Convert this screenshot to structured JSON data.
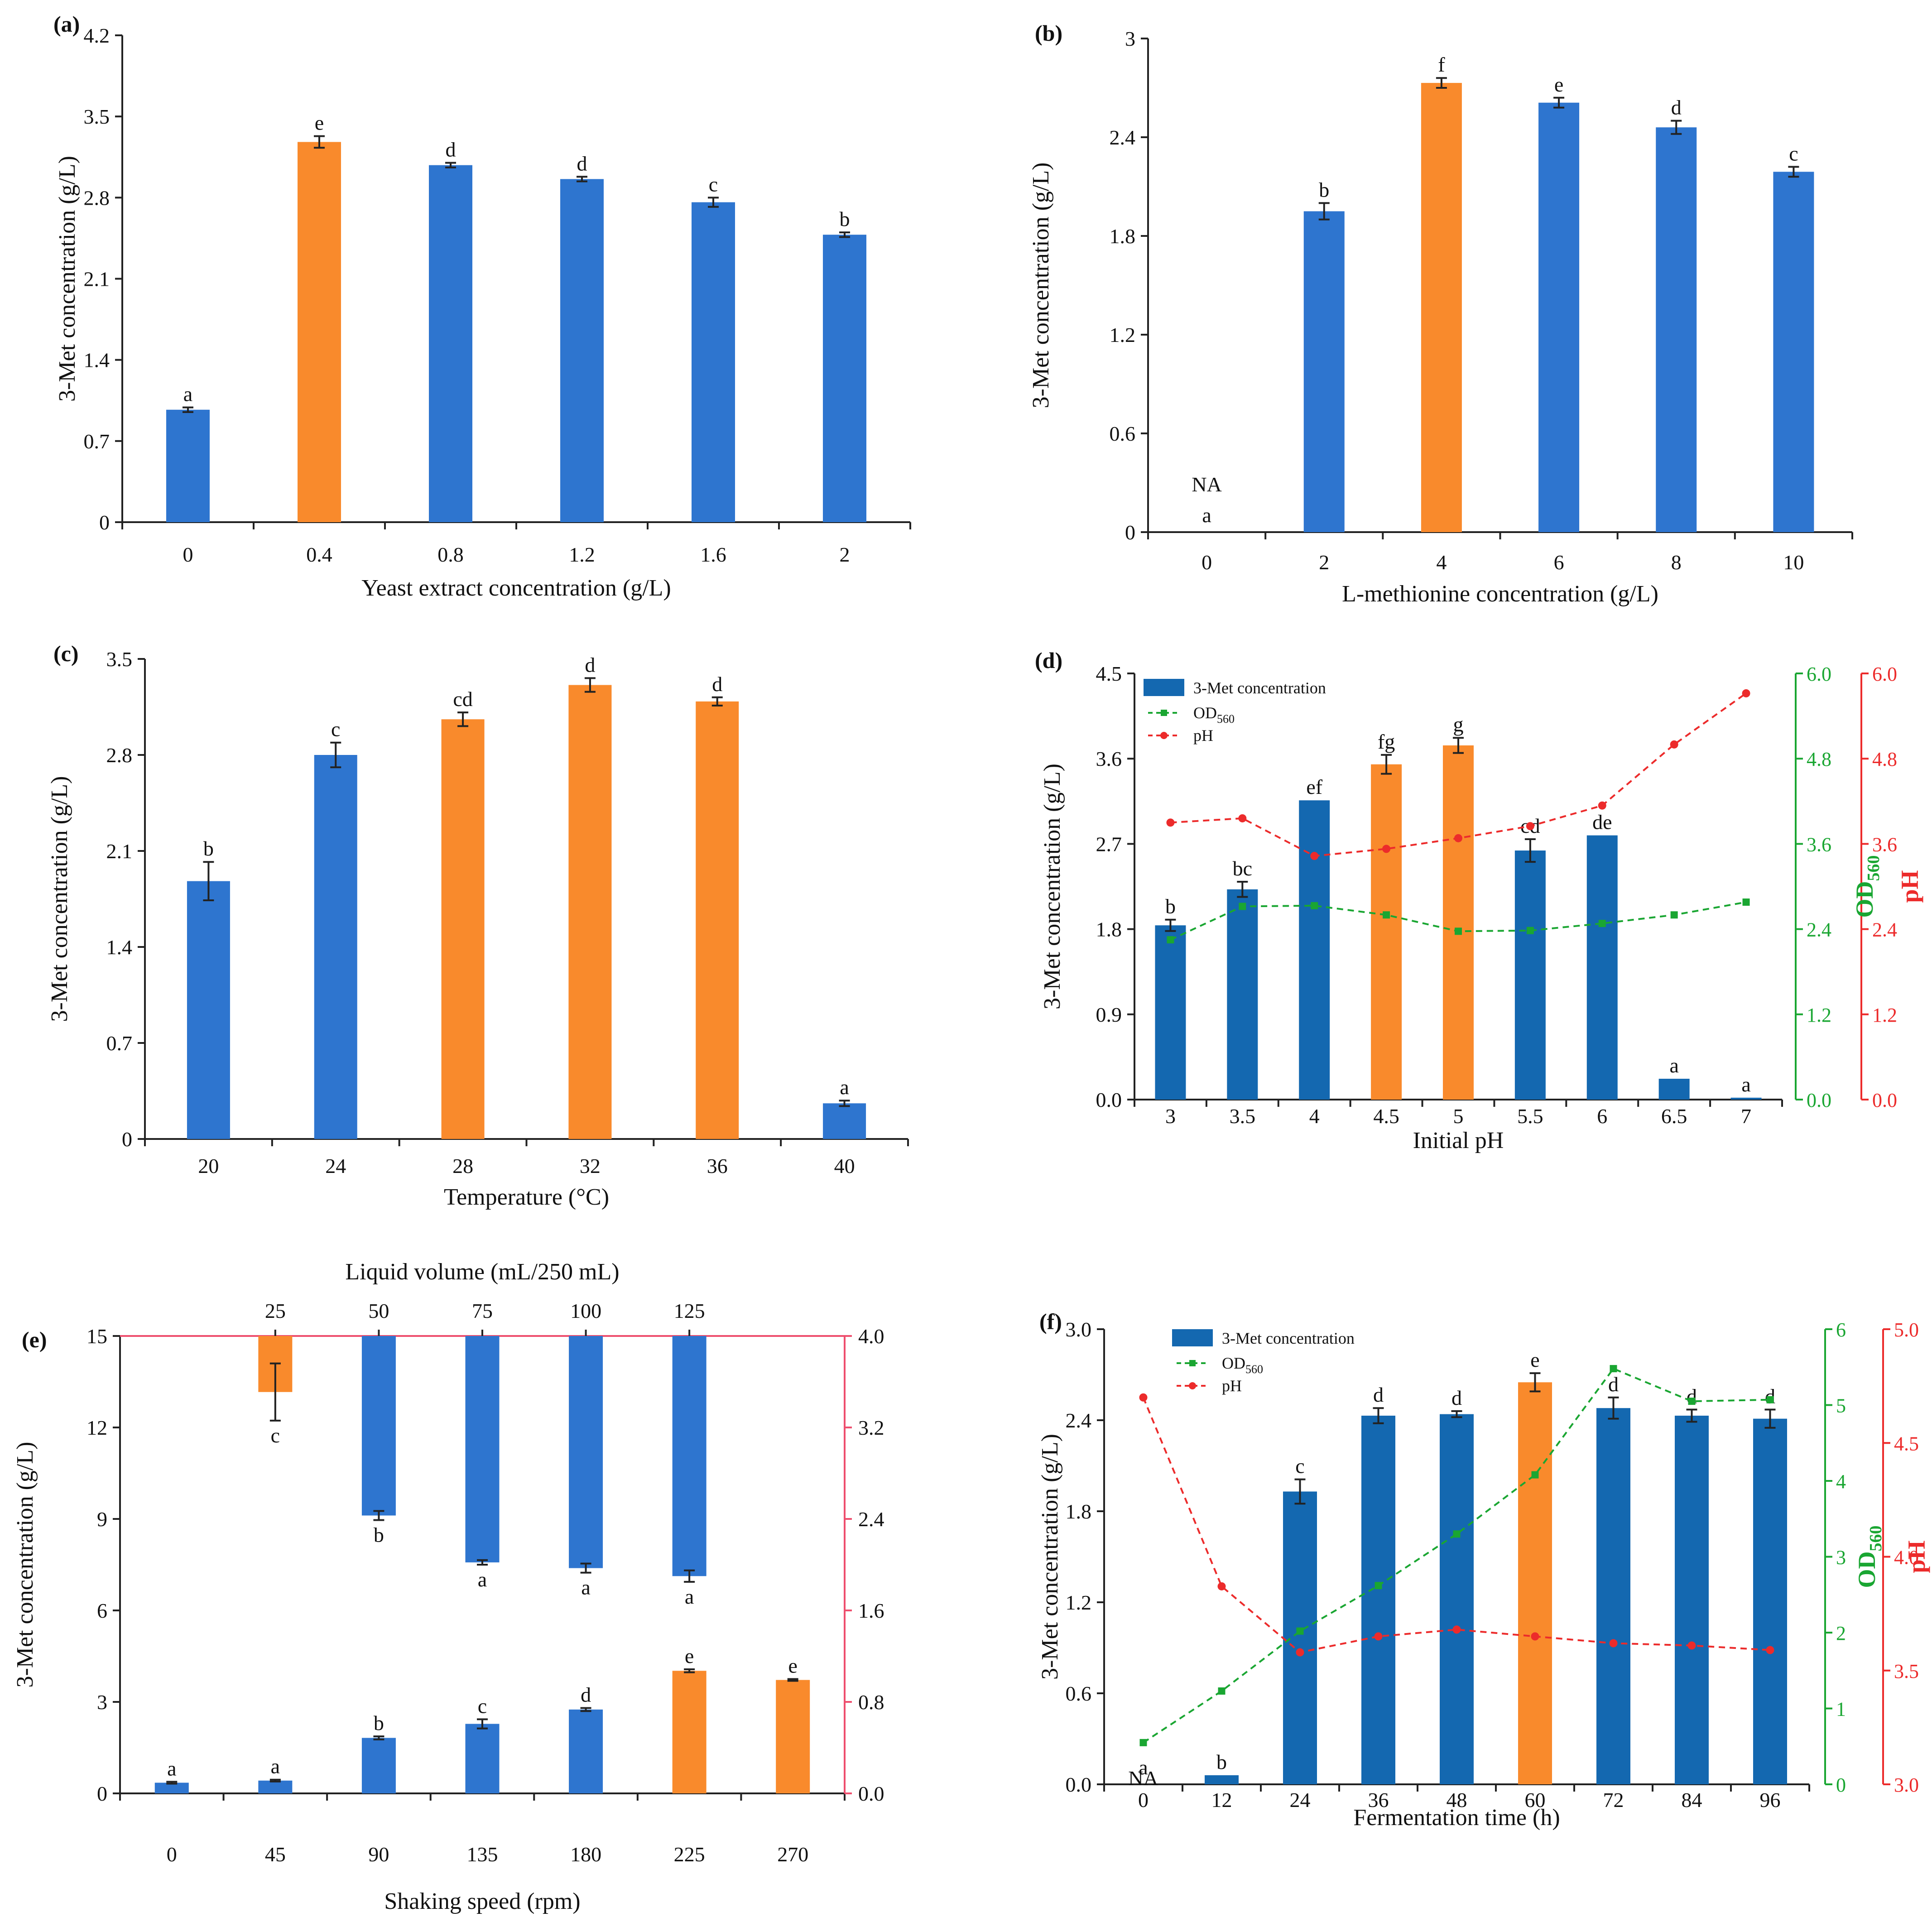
{
  "colors": {
    "blue": "#2e75cf",
    "blue_dark": "#1468b0",
    "orange": "#f98a2c",
    "green": "#1aa632",
    "red": "#ec2b2b",
    "axis": "#222222",
    "pink_frame": "#ee4f6e"
  },
  "chart_data": [
    {
      "id": "a",
      "panel_label": "(a)",
      "type": "bar",
      "xlabel": "Yeast extract concentration (g/L)",
      "ylabel": "3-Met concentration (g/L)",
      "ylim": [
        0,
        4.2
      ],
      "yticks": [
        "0",
        "0.7",
        "1.4",
        "2.1",
        "2.8",
        "3.5",
        "4.2"
      ],
      "categories": [
        "0",
        "0.4",
        "0.8",
        "1.2",
        "1.6",
        "2"
      ],
      "values": [
        0.97,
        3.28,
        3.08,
        2.96,
        2.76,
        2.48
      ],
      "errors": [
        0.02,
        0.05,
        0.02,
        0.02,
        0.04,
        0.02
      ],
      "bar_colors": [
        "blue",
        "orange",
        "blue",
        "blue",
        "blue",
        "blue"
      ],
      "letters": [
        "a",
        "e",
        "d",
        "d",
        "c",
        "b"
      ]
    },
    {
      "id": "b",
      "panel_label": "(b)",
      "type": "bar",
      "xlabel": "L-methionine concentration (g/L)",
      "ylabel": "3-Met concentration (g/L)",
      "ylim": [
        0,
        3.0
      ],
      "yticks": [
        "0",
        "0.6",
        "1.2",
        "1.8",
        "2.4",
        "3"
      ],
      "categories": [
        "0",
        "2",
        "4",
        "6",
        "8",
        "10"
      ],
      "values": [
        0,
        1.95,
        2.73,
        2.61,
        2.46,
        2.19
      ],
      "errors": [
        0,
        0.05,
        0.03,
        0.03,
        0.04,
        0.03
      ],
      "bar_colors": [
        "blue",
        "blue",
        "orange",
        "blue",
        "blue",
        "blue"
      ],
      "letters": [
        "a",
        "b",
        "f",
        "e",
        "d",
        "c"
      ],
      "na_label": "NA"
    },
    {
      "id": "c",
      "panel_label": "(c)",
      "type": "bar",
      "xlabel": "Temperature (°C)",
      "ylabel": "3-Met concentration (g/L)",
      "ylim": [
        0,
        3.5
      ],
      "yticks": [
        "0",
        "0.7",
        "1.4",
        "2.1",
        "2.8",
        "3.5"
      ],
      "categories": [
        "20",
        "24",
        "28",
        "32",
        "36",
        "40"
      ],
      "values": [
        1.88,
        2.8,
        3.06,
        3.31,
        3.19,
        0.26
      ],
      "errors": [
        0.14,
        0.09,
        0.05,
        0.05,
        0.03,
        0.02
      ],
      "bar_colors": [
        "blue",
        "blue",
        "orange",
        "orange",
        "orange",
        "blue"
      ],
      "letters": [
        "b",
        "c",
        "cd",
        "d",
        "d",
        "a"
      ]
    },
    {
      "id": "d",
      "panel_label": "(d)",
      "type": "bar+line",
      "xlabel": "Initial pH",
      "ylabel": "3-Met concentration (g/L)",
      "y2label": "OD560",
      "y2label_main": "OD",
      "y2label_sub": "560",
      "y3label": "pH",
      "ylim": [
        0,
        4.5
      ],
      "yticks": [
        "0.0",
        "0.9",
        "1.8",
        "2.7",
        "3.6",
        "4.5"
      ],
      "y2lim": [
        0,
        6.0
      ],
      "y2ticks": [
        "0.0",
        "1.2",
        "2.4",
        "3.6",
        "4.8",
        "6.0"
      ],
      "y3lim": [
        0,
        6.0
      ],
      "y3ticks": [
        "0.0",
        "1.2",
        "2.4",
        "3.6",
        "4.8",
        "6.0"
      ],
      "categories": [
        "3",
        "3.5",
        "4",
        "4.5",
        "5",
        "5.5",
        "6",
        "6.5",
        "7"
      ],
      "values": [
        1.84,
        2.22,
        3.16,
        3.54,
        3.74,
        2.63,
        2.79,
        0.22,
        0.02
      ],
      "errors": [
        0.06,
        0.08,
        0.0,
        0.1,
        0.08,
        0.12,
        0.0,
        0.0,
        0.0
      ],
      "bar_colors": [
        "blue_dark",
        "blue_dark",
        "blue_dark",
        "orange",
        "orange",
        "blue_dark",
        "blue_dark",
        "blue_dark",
        "blue_dark"
      ],
      "letters": [
        "b",
        "bc",
        "ef",
        "fg",
        "g",
        "cd",
        "de",
        "a",
        "a"
      ],
      "series": [
        {
          "name": "OD560",
          "axis": "y2",
          "color": "green",
          "marker": "square",
          "values": [
            2.25,
            2.72,
            2.73,
            2.6,
            2.37,
            2.38,
            2.48,
            2.6,
            2.78
          ]
        },
        {
          "name": "pH",
          "axis": "y3",
          "color": "red",
          "marker": "circle",
          "values": [
            3.9,
            3.96,
            3.43,
            3.53,
            3.68,
            3.85,
            4.14,
            5.0,
            5.72
          ]
        }
      ],
      "legend": [
        "3-Met concentration",
        "OD",
        "pH"
      ],
      "legend_sub": "560",
      "legend_position": "top-left"
    },
    {
      "id": "e",
      "panel_label": "(e)",
      "type": "bar (dual x-axis)",
      "xlabel": "Shaking speed (rpm)",
      "x2label": "Liquid volume (mL/250 mL)",
      "ylabel": "3-Met concentration (g/L)",
      "ylim": [
        0,
        15
      ],
      "yticks": [
        "0",
        "3",
        "6",
        "9",
        "12",
        "15"
      ],
      "y2lim": [
        0,
        4.0
      ],
      "y2ticks": [
        "0.0",
        "0.8",
        "1.6",
        "2.4",
        "3.2",
        "4.0"
      ],
      "categories": [
        "0",
        "45",
        "90",
        "135",
        "180",
        "225",
        "270"
      ],
      "values": [
        0.35,
        0.42,
        1.82,
        2.28,
        2.75,
        4.02,
        3.72
      ],
      "errors": [
        0.03,
        0.03,
        0.05,
        0.15,
        0.05,
        0.05,
        0.03
      ],
      "bar_colors": [
        "blue",
        "blue",
        "blue",
        "blue",
        "blue",
        "orange",
        "orange"
      ],
      "letters": [
        "a",
        "a",
        "b",
        "c",
        "d",
        "e",
        "e"
      ],
      "top_categories": [
        "25",
        "50",
        "75",
        "100",
        "125"
      ],
      "top_values": [
        0.49,
        1.57,
        1.98,
        2.03,
        2.1
      ],
      "top_errors": [
        0.25,
        0.04,
        0.02,
        0.04,
        0.05
      ],
      "top_bar_colors": [
        "orange",
        "blue",
        "blue",
        "blue",
        "blue"
      ],
      "top_letters": [
        "c",
        "b",
        "a",
        "a",
        "a"
      ]
    },
    {
      "id": "f",
      "panel_label": "(f)",
      "type": "bar+line",
      "xlabel": "Fermentation time (h)",
      "ylabel": "3-Met concentration (g/L)",
      "y2label": "OD560",
      "y2label_main": "OD",
      "y2label_sub": "560",
      "y3label": "pH",
      "ylim": [
        0,
        3.0
      ],
      "yticks": [
        "0.0",
        "0.6",
        "1.2",
        "1.8",
        "2.4",
        "3.0"
      ],
      "y2lim": [
        0,
        6
      ],
      "y2ticks": [
        "0",
        "1",
        "2",
        "3",
        "4",
        "5",
        "6"
      ],
      "y3lim": [
        3.0,
        5.0
      ],
      "y3ticks": [
        "3.0",
        "3.5",
        "4.0",
        "4.5",
        "5.0"
      ],
      "categories": [
        "0",
        "12",
        "24",
        "36",
        "48",
        "60",
        "72",
        "84",
        "96"
      ],
      "values": [
        0,
        0.06,
        1.93,
        2.43,
        2.44,
        2.65,
        2.48,
        2.43,
        2.41
      ],
      "errors": [
        0,
        0.0,
        0.08,
        0.05,
        0.02,
        0.06,
        0.07,
        0.04,
        0.06
      ],
      "bar_colors": [
        "blue_dark",
        "blue_dark",
        "blue_dark",
        "blue_dark",
        "blue_dark",
        "orange",
        "blue_dark",
        "blue_dark",
        "blue_dark"
      ],
      "letters": [
        "a",
        "b",
        "c",
        "d",
        "d",
        "e",
        "d",
        "d",
        "d"
      ],
      "na_label": "NA",
      "series": [
        {
          "name": "OD560",
          "axis": "y2",
          "color": "green",
          "marker": "square",
          "values": [
            0.55,
            1.23,
            2.02,
            2.62,
            3.3,
            4.08,
            5.48,
            5.05,
            5.07
          ]
        },
        {
          "name": "pH",
          "axis": "y3",
          "color": "red",
          "marker": "circle",
          "values": [
            4.7,
            3.87,
            3.58,
            3.65,
            3.68,
            3.65,
            3.62,
            3.61,
            3.59
          ]
        }
      ],
      "legend": [
        "3-Met concentration",
        "OD",
        "pH"
      ],
      "legend_sub": "560",
      "legend_position": "top-left"
    }
  ]
}
